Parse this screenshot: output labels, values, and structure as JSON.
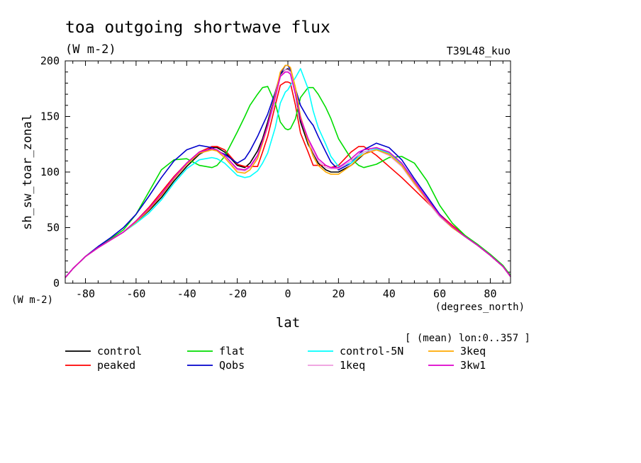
{
  "chart_data": {
    "type": "line",
    "title": "toa outgoing shortwave flux",
    "subtitle": "(W m-2)",
    "experiment": "T39L48_kuo",
    "ylabel": "sh_sw_toar_zonal",
    "yunits": "(W m-2)",
    "xlabel": "lat",
    "xunits": "(degrees_north)",
    "annotation": "[ (mean) lon:0..357 ]",
    "xlim": [
      -88,
      88
    ],
    "ylim": [
      0,
      200
    ],
    "xticks": [
      -80,
      -60,
      -40,
      -20,
      0,
      20,
      40,
      60,
      80
    ],
    "xtick_labels": [
      "-80",
      "-60",
      "-40",
      "-20",
      "0",
      "20",
      "40",
      "60",
      "80"
    ],
    "yticks": [
      0,
      50,
      100,
      150,
      200
    ],
    "ytick_labels": [
      "0",
      "50",
      "100",
      "150",
      "200"
    ],
    "grid": false,
    "legend_position": "bottom",
    "x": [
      -88,
      -85,
      -80,
      -75,
      -70,
      -65,
      -60,
      -55,
      -50,
      -45,
      -40,
      -35,
      -30,
      -28,
      -25,
      -20,
      -17,
      -15,
      -12,
      -10,
      -8,
      -5,
      -3,
      -1,
      0,
      1,
      3,
      5,
      8,
      10,
      12,
      15,
      17,
      20,
      25,
      28,
      30,
      35,
      40,
      45,
      50,
      55,
      60,
      65,
      70,
      75,
      80,
      85,
      88
    ],
    "series": [
      {
        "name": "control",
        "color": "#000000",
        "values": [
          5,
          13,
          24,
          32,
          39,
          46,
          55,
          65,
          77,
          92,
          105,
          116,
          122,
          122,
          118,
          106,
          104,
          108,
          119,
          130,
          145,
          170,
          188,
          192,
          193,
          190,
          170,
          145,
          125,
          117,
          108,
          102,
          100,
          100,
          106,
          112,
          116,
          121,
          116,
          106,
          90,
          74,
          60,
          50,
          42,
          34,
          25,
          15,
          6
        ]
      },
      {
        "name": "peaked",
        "color": "#ff0000",
        "values": [
          5,
          13,
          24,
          32,
          39,
          46,
          56,
          68,
          82,
          96,
          108,
          118,
          123,
          123,
          120,
          107,
          105,
          105,
          105,
          118,
          132,
          160,
          178,
          181,
          181,
          180,
          160,
          135,
          118,
          106,
          106,
          106,
          104,
          106,
          118,
          123,
          123,
          115,
          105,
          95,
          84,
          73,
          62,
          52,
          43,
          34,
          25,
          15,
          6
        ]
      },
      {
        "name": "flat",
        "color": "#00dd00",
        "values": [
          5,
          13,
          24,
          33,
          40,
          48,
          62,
          82,
          102,
          111,
          112,
          106,
          104,
          106,
          114,
          136,
          150,
          160,
          170,
          176,
          177,
          162,
          145,
          139,
          138,
          139,
          148,
          167,
          176,
          176,
          170,
          158,
          148,
          130,
          112,
          106,
          104,
          107,
          113,
          114,
          108,
          92,
          70,
          54,
          43,
          35,
          26,
          16,
          7
        ]
      },
      {
        "name": "Qobs",
        "color": "#0000cc",
        "values": [
          5,
          13,
          24,
          33,
          41,
          50,
          62,
          78,
          95,
          110,
          120,
          124,
          122,
          119,
          116,
          108,
          112,
          119,
          132,
          142,
          152,
          172,
          188,
          196,
          196,
          192,
          175,
          160,
          148,
          142,
          132,
          118,
          109,
          102,
          108,
          116,
          120,
          126,
          122,
          111,
          94,
          78,
          62,
          50,
          42,
          34,
          25,
          15,
          6
        ]
      },
      {
        "name": "control-5N",
        "color": "#00ffff",
        "values": [
          5,
          13,
          24,
          32,
          39,
          46,
          54,
          63,
          75,
          90,
          103,
          111,
          113,
          112,
          108,
          97,
          95,
          96,
          101,
          108,
          117,
          140,
          162,
          172,
          174,
          178,
          185,
          193,
          175,
          155,
          140,
          125,
          114,
          105,
          108,
          114,
          118,
          121,
          117,
          107,
          91,
          75,
          61,
          50,
          42,
          34,
          25,
          15,
          6
        ]
      },
      {
        "name": "1keq",
        "color": "#ee99dd",
        "values": [
          5,
          13,
          24,
          32,
          39,
          46,
          55,
          66,
          79,
          94,
          107,
          117,
          120,
          119,
          113,
          102,
          101,
          104,
          113,
          126,
          140,
          165,
          186,
          192,
          192,
          190,
          172,
          150,
          130,
          118,
          110,
          104,
          103,
          103,
          110,
          116,
          118,
          120,
          115,
          105,
          89,
          74,
          60,
          50,
          42,
          34,
          25,
          15,
          6
        ]
      },
      {
        "name": "3keq",
        "color": "#ffaa00",
        "values": [
          5,
          13,
          24,
          32,
          39,
          46,
          55,
          66,
          79,
          94,
          107,
          117,
          120,
          119,
          113,
          100,
          99,
          102,
          112,
          126,
          142,
          170,
          190,
          196,
          196,
          194,
          176,
          150,
          127,
          114,
          106,
          100,
          98,
          98,
          106,
          113,
          116,
          120,
          116,
          106,
          90,
          75,
          61,
          50,
          42,
          34,
          25,
          15,
          6
        ]
      },
      {
        "name": "3kw1",
        "color": "#dd00cc",
        "values": [
          5,
          13,
          24,
          32,
          39,
          46,
          56,
          67,
          80,
          95,
          108,
          118,
          121,
          120,
          115,
          103,
          102,
          105,
          115,
          128,
          142,
          168,
          186,
          190,
          190,
          188,
          170,
          148,
          130,
          121,
          112,
          106,
          104,
          104,
          112,
          118,
          120,
          122,
          118,
          108,
          92,
          76,
          61,
          51,
          42,
          34,
          25,
          15,
          6
        ]
      }
    ]
  }
}
